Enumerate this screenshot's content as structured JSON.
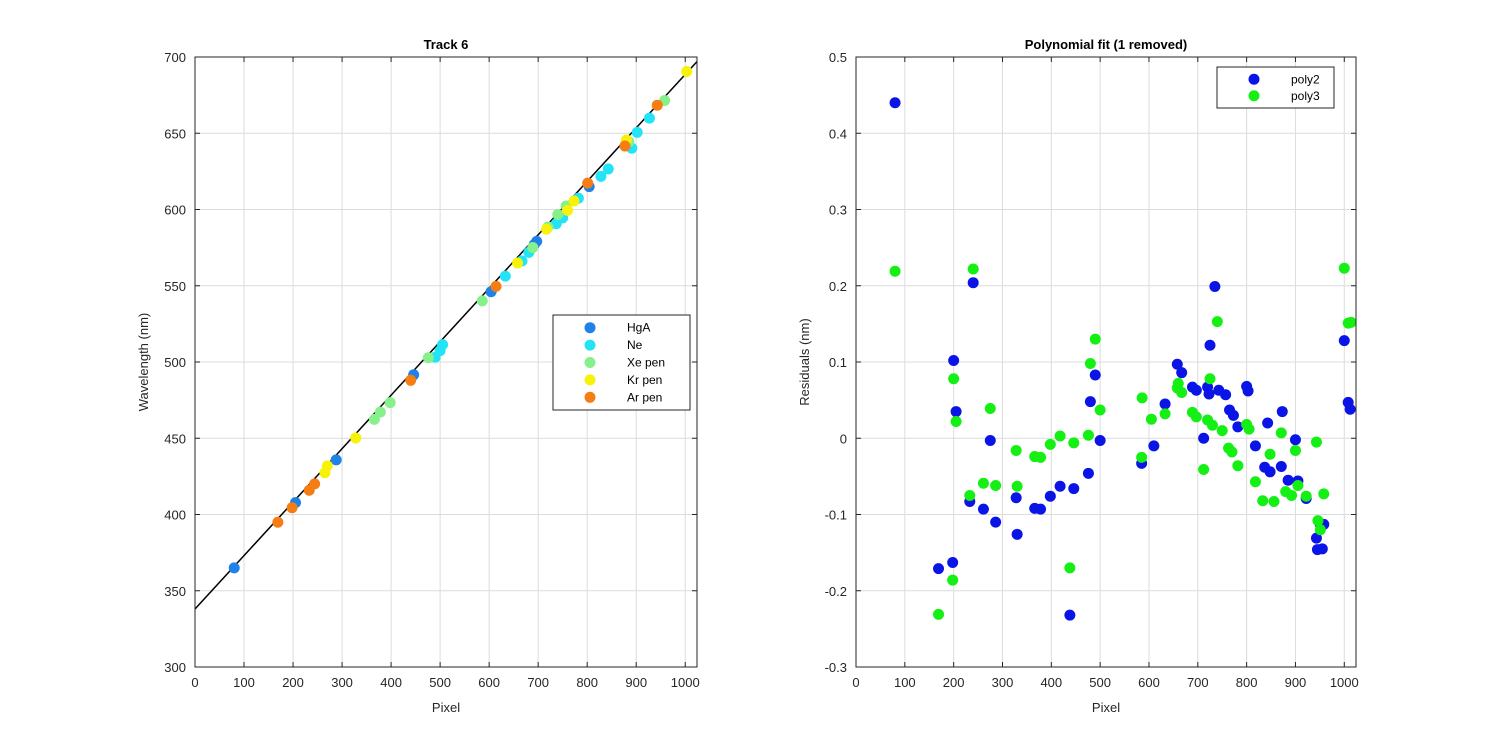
{
  "colors": {
    "HgA": "#1f82e6",
    "Ne": "#22e4f6",
    "Xe pen": "#86f08a",
    "Kr pen": "#f7f209",
    "Ar pen": "#f57d14",
    "fit_line": "#000000",
    "poly2": "#0a14e6",
    "poly3": "#14f014"
  },
  "chart_data": [
    {
      "type": "scatter",
      "title": "Track 6",
      "xlabel": "Pixel",
      "ylabel": "Wavelength (nm)",
      "xlim": [
        0,
        1024
      ],
      "ylim": [
        300,
        700
      ],
      "xticks": [
        0,
        100,
        200,
        300,
        400,
        500,
        600,
        700,
        800,
        900,
        1000
      ],
      "yticks": [
        300,
        350,
        400,
        450,
        500,
        550,
        600,
        650,
        700
      ],
      "grid": true,
      "legend_position": "right",
      "fit_line": {
        "x": [
          0,
          1024
        ],
        "y": [
          338,
          697
        ]
      },
      "series": [
        {
          "name": "HgA",
          "x": [
            80,
            205,
            288,
            446,
            604,
            692,
            697,
            804
          ],
          "y": [
            365.0,
            407.8,
            435.8,
            491.6,
            546.1,
            577.0,
            579.1,
            615.0
          ]
        },
        {
          "name": "Ne",
          "x": [
            490,
            500,
            505,
            633,
            667,
            681,
            737,
            750,
            782,
            828,
            843,
            891,
            902,
            927
          ],
          "y": [
            503.1,
            507.5,
            511.4,
            556.3,
            566.3,
            571.9,
            590.7,
            594.5,
            607.4,
            621.7,
            626.6,
            640.2,
            650.6,
            659.9
          ]
        },
        {
          "name": "Xe pen",
          "x": [
            366,
            378,
            398,
            476,
            586,
            689,
            720,
            740,
            757,
            885,
            958
          ],
          "y": [
            462.4,
            467.1,
            473.4,
            502.8,
            540.1,
            575.1,
            588.5,
            596.7,
            602.3,
            644.4,
            671.5
          ]
        },
        {
          "name": "Kr pen",
          "x": [
            265,
            270,
            328,
            658,
            717,
            760,
            773,
            880,
            1003
          ],
          "y": [
            427.4,
            431.9,
            450.2,
            564.9,
            587.1,
            599.4,
            605.6,
            645.6,
            690.5
          ]
        },
        {
          "name": "Ar pen",
          "x": [
            169,
            198,
            233,
            244,
            440,
            614,
            801,
            877,
            943
          ],
          "y": [
            394.9,
            404.4,
            415.9,
            420.1,
            488.0,
            549.6,
            617.3,
            641.6,
            668.4
          ]
        }
      ]
    },
    {
      "type": "scatter",
      "title": "Polynomial fit  (1 removed)",
      "xlabel": "Pixel",
      "ylabel": "Residuals (nm)",
      "xlim": [
        0,
        1024
      ],
      "ylim": [
        -0.3,
        0.5
      ],
      "xticks": [
        0,
        100,
        200,
        300,
        400,
        500,
        600,
        700,
        800,
        900,
        1000
      ],
      "yticks": [
        -0.3,
        -0.2,
        -0.1,
        0,
        0.1,
        0.2,
        0.3,
        0.4,
        0.5
      ],
      "grid": true,
      "legend_position": "top-right",
      "series": [
        {
          "name": "poly2",
          "x": [
            80,
            169,
            198,
            200,
            205,
            233,
            240,
            261,
            275,
            286,
            328,
            330,
            366,
            378,
            398,
            418,
            438,
            446,
            476,
            480,
            490,
            500,
            585,
            610,
            633,
            658,
            667,
            689,
            697,
            712,
            720,
            723,
            725,
            735,
            743,
            757,
            765,
            773,
            782,
            800,
            803,
            818,
            837,
            843,
            848,
            871,
            873,
            885,
            900,
            905,
            922,
            943,
            945,
            951,
            955,
            958,
            1000,
            1008,
            1012
          ],
          "y": [
            0.44,
            -0.171,
            -0.163,
            0.102,
            0.035,
            -0.083,
            0.204,
            -0.093,
            -0.003,
            -0.11,
            -0.078,
            -0.126,
            -0.092,
            -0.093,
            -0.076,
            -0.063,
            -0.232,
            -0.066,
            -0.046,
            0.048,
            0.083,
            -0.003,
            -0.033,
            -0.01,
            0.045,
            0.097,
            0.086,
            0.067,
            0.063,
            0.0,
            0.067,
            0.058,
            0.122,
            0.199,
            0.063,
            0.057,
            0.037,
            0.03,
            0.015,
            0.068,
            0.062,
            -0.01,
            -0.038,
            0.02,
            -0.044,
            -0.037,
            0.035,
            -0.055,
            -0.002,
            -0.056,
            -0.079,
            -0.131,
            -0.146,
            -0.113,
            -0.145,
            -0.113,
            0.128,
            0.047,
            0.038
          ]
        },
        {
          "name": "poly3",
          "x": [
            80,
            169,
            198,
            200,
            205,
            233,
            240,
            261,
            275,
            286,
            328,
            330,
            366,
            378,
            398,
            418,
            438,
            446,
            476,
            480,
            490,
            500,
            585,
            586,
            605,
            633,
            658,
            660,
            667,
            689,
            697,
            712,
            720,
            725,
            730,
            740,
            750,
            763,
            770,
            782,
            800,
            805,
            818,
            833,
            848,
            856,
            871,
            880,
            892,
            900,
            905,
            922,
            943,
            946,
            951,
            958,
            1000,
            1008,
            1014
          ],
          "y": [
            0.219,
            -0.231,
            -0.186,
            0.078,
            0.022,
            -0.075,
            0.222,
            -0.059,
            0.039,
            -0.062,
            -0.016,
            -0.063,
            -0.024,
            -0.025,
            -0.008,
            0.003,
            -0.17,
            -0.006,
            0.004,
            0.098,
            0.13,
            0.037,
            -0.025,
            0.053,
            0.025,
            0.032,
            0.066,
            0.072,
            0.06,
            0.034,
            0.028,
            -0.041,
            0.024,
            0.078,
            0.017,
            0.153,
            0.01,
            -0.013,
            -0.018,
            -0.036,
            0.018,
            0.012,
            -0.057,
            -0.082,
            -0.021,
            -0.083,
            0.007,
            -0.07,
            -0.075,
            -0.016,
            -0.062,
            -0.076,
            -0.005,
            -0.108,
            -0.12,
            -0.073,
            0.223,
            0.151,
            0.152
          ]
        }
      ]
    }
  ]
}
